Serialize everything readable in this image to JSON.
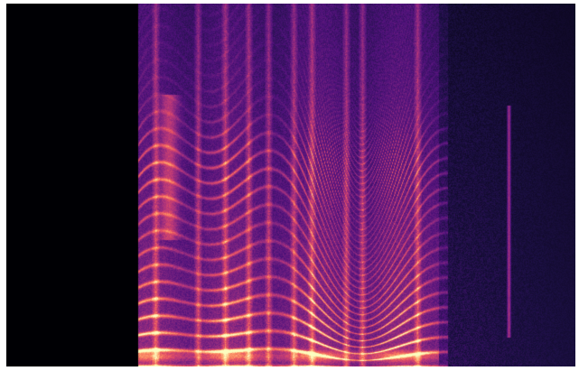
{
  "image": {
    "description_kind": "spectrogram",
    "colormap": "magma",
    "colors": {
      "background": "#000004",
      "low": "#3b0f70",
      "mid": "#8c2981",
      "high": "#de4968",
      "peak": "#fe9f6d",
      "hot": "#fcfdbf",
      "border": "#ffffff"
    }
  }
}
